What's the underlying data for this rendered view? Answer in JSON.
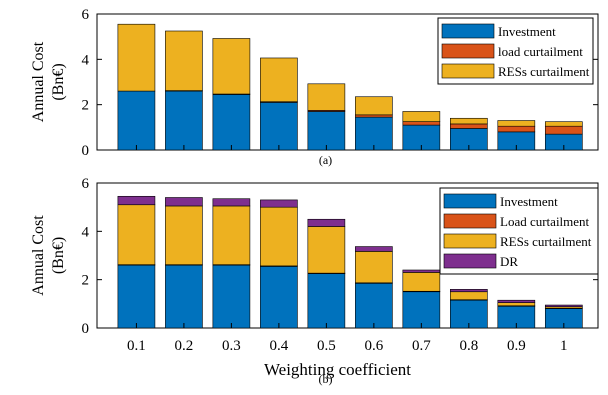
{
  "colors": {
    "investment": "#0072BD",
    "curtailment_load": "#D95319",
    "curtailment_res": "#EDB120",
    "dr": "#7E2F8E"
  },
  "chart_data": [
    {
      "type": "bar",
      "stacked": true,
      "panel_label": "(a)",
      "xlabel": "",
      "ylabel_line1": "Annual Cost",
      "ylabel_line2": "(Bn€)",
      "ylim": [
        0,
        6
      ],
      "yticks": [
        "0",
        "2",
        "4",
        "6"
      ],
      "categories": [
        "0.1",
        "0.2",
        "0.3",
        "0.4",
        "0.5",
        "0.6",
        "0.7",
        "0.8",
        "0.9",
        "1"
      ],
      "legend_position": "top-right",
      "series": [
        {
          "name": "Investment",
          "color_key": "investment",
          "values": [
            2.6,
            2.6,
            2.45,
            2.1,
            1.7,
            1.45,
            1.1,
            0.95,
            0.8,
            0.7
          ]
        },
        {
          "name": "load curtailment",
          "color_key": "curtailment_load",
          "values": [
            0,
            0.02,
            0.02,
            0.03,
            0.05,
            0.1,
            0.15,
            0.2,
            0.25,
            0.35
          ]
        },
        {
          "name": "RESs curtailment",
          "color_key": "curtailment_res",
          "values": [
            2.95,
            2.63,
            2.45,
            1.93,
            1.17,
            0.8,
            0.45,
            0.25,
            0.25,
            0.2
          ]
        }
      ]
    },
    {
      "type": "bar",
      "stacked": true,
      "panel_label": "(b)",
      "xlabel": "Weighting coefficient",
      "ylabel_line1": "Annual Cost",
      "ylabel_line2": "(Bn€)",
      "ylim": [
        0,
        6
      ],
      "yticks": [
        "0",
        "2",
        "4",
        "6"
      ],
      "categories": [
        "0.1",
        "0.2",
        "0.3",
        "0.4",
        "0.5",
        "0.6",
        "0.7",
        "0.8",
        "0.9",
        "1"
      ],
      "legend_position": "top-right",
      "series": [
        {
          "name": "Investment",
          "color_key": "investment",
          "values": [
            2.6,
            2.6,
            2.6,
            2.55,
            2.25,
            1.85,
            1.5,
            1.15,
            0.9,
            0.8
          ]
        },
        {
          "name": "Load curtailment",
          "color_key": "curtailment_load",
          "values": [
            0.02,
            0.02,
            0.02,
            0.02,
            0.02,
            0.02,
            0.02,
            0.02,
            0.02,
            0.02
          ]
        },
        {
          "name": "RESs curtailment",
          "color_key": "curtailment_res",
          "values": [
            2.48,
            2.43,
            2.43,
            2.43,
            1.93,
            1.3,
            0.78,
            0.33,
            0.13,
            0.06
          ]
        },
        {
          "name": "DR",
          "color_key": "dr",
          "values": [
            0.35,
            0.35,
            0.3,
            0.3,
            0.3,
            0.2,
            0.1,
            0.1,
            0.1,
            0.07
          ]
        }
      ]
    }
  ]
}
